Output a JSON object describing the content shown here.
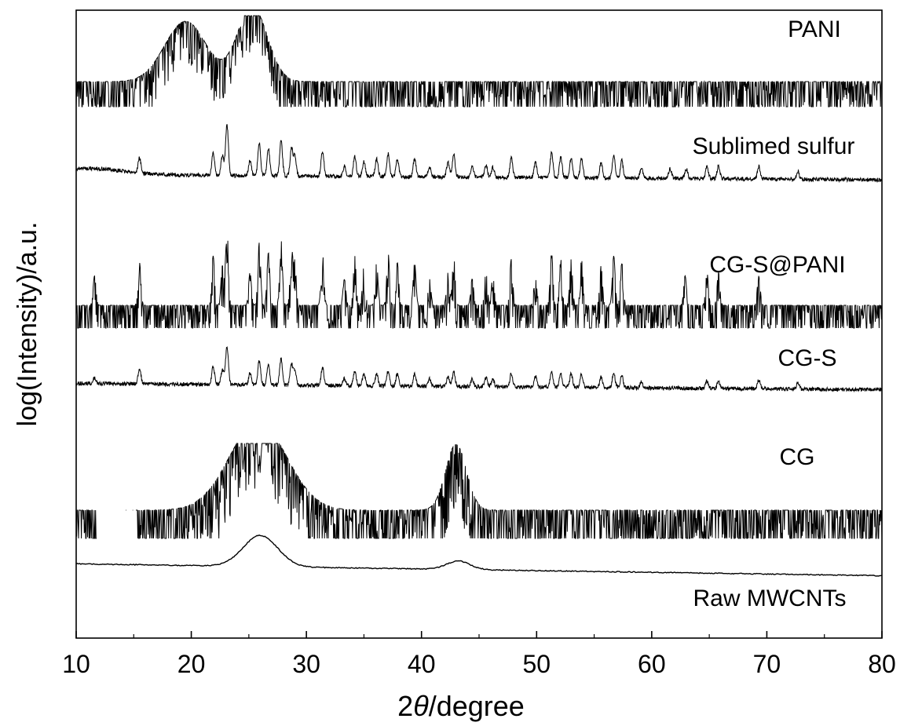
{
  "chart_data": {
    "type": "line",
    "title": "",
    "xlabel_prefix": "2",
    "xlabel_symbol": "θ",
    "xlabel_suffix": "/degree",
    "ylabel": "log(Intensity)/a.u.",
    "xlim": [
      10,
      80
    ],
    "x_ticks": [
      10,
      20,
      30,
      40,
      50,
      60,
      70,
      80
    ],
    "y_ticks": false,
    "grid": false,
    "legend": "inline labels at right of each trace",
    "series": [
      {
        "name": "PANI",
        "style": "noisy",
        "baseline": 0.5,
        "peaks": [
          [
            19.5,
            1.6,
            1.8
          ],
          [
            25.3,
            2.0,
            1.3
          ]
        ]
      },
      {
        "name": "Sublimed sulfur",
        "style": "crystalline",
        "baseline": 0.3,
        "broad": [
          [
            11.0,
            0.25,
            3.0
          ]
        ],
        "peaks": [
          [
            15.5,
            0.6,
            0.12
          ],
          [
            21.9,
            0.9,
            0.12
          ],
          [
            22.7,
            0.8,
            0.12
          ],
          [
            23.1,
            2.0,
            0.12
          ],
          [
            25.1,
            0.6,
            0.12
          ],
          [
            25.9,
            1.3,
            0.12
          ],
          [
            26.7,
            1.1,
            0.12
          ],
          [
            27.8,
            1.4,
            0.12
          ],
          [
            28.7,
            1.1,
            0.12
          ],
          [
            29.0,
            0.8,
            0.12
          ],
          [
            31.4,
            1.0,
            0.12
          ],
          [
            33.3,
            0.4,
            0.12
          ],
          [
            34.2,
            0.8,
            0.12
          ],
          [
            35.0,
            0.6,
            0.12
          ],
          [
            36.1,
            0.7,
            0.12
          ],
          [
            37.1,
            0.9,
            0.12
          ],
          [
            37.9,
            0.7,
            0.12
          ],
          [
            39.4,
            0.7,
            0.12
          ],
          [
            40.7,
            0.4,
            0.12
          ],
          [
            42.3,
            0.6,
            0.12
          ],
          [
            42.8,
            0.9,
            0.12
          ],
          [
            44.4,
            0.4,
            0.12
          ],
          [
            45.6,
            0.5,
            0.12
          ],
          [
            46.2,
            0.4,
            0.12
          ],
          [
            47.8,
            0.8,
            0.12
          ],
          [
            49.9,
            0.6,
            0.12
          ],
          [
            51.3,
            1.0,
            0.12
          ],
          [
            52.1,
            0.8,
            0.12
          ],
          [
            53.0,
            0.8,
            0.12
          ],
          [
            53.9,
            0.8,
            0.12
          ],
          [
            55.6,
            0.6,
            0.12
          ],
          [
            56.7,
            0.9,
            0.12
          ],
          [
            57.4,
            0.7,
            0.12
          ],
          [
            59.1,
            0.4,
            0.12
          ],
          [
            61.6,
            0.4,
            0.12
          ],
          [
            63.0,
            0.4,
            0.12
          ],
          [
            64.8,
            0.5,
            0.12
          ],
          [
            65.8,
            0.5,
            0.12
          ],
          [
            69.3,
            0.5,
            0.12
          ],
          [
            72.7,
            0.3,
            0.12
          ]
        ]
      },
      {
        "name": "CG-S@PANI",
        "style": "noisy-crystalline",
        "baseline": 0.5,
        "peaks": [
          [
            11.6,
            0.9,
            0.12
          ],
          [
            15.5,
            1.3,
            0.12
          ],
          [
            21.9,
            1.5,
            0.12
          ],
          [
            22.7,
            1.2,
            0.12
          ],
          [
            23.1,
            2.4,
            0.12
          ],
          [
            25.1,
            1.0,
            0.12
          ],
          [
            25.9,
            1.9,
            0.12
          ],
          [
            26.7,
            1.6,
            0.12
          ],
          [
            27.8,
            2.0,
            0.12
          ],
          [
            28.7,
            1.7,
            0.12
          ],
          [
            29.0,
            1.3,
            0.12
          ],
          [
            31.4,
            1.6,
            0.12
          ],
          [
            33.3,
            0.8,
            0.12
          ],
          [
            34.2,
            1.5,
            0.12
          ],
          [
            35.0,
            1.2,
            0.12
          ],
          [
            36.1,
            1.3,
            0.12
          ],
          [
            37.1,
            1.6,
            0.12
          ],
          [
            37.9,
            1.3,
            0.12
          ],
          [
            39.4,
            1.3,
            0.12
          ],
          [
            40.7,
            0.8,
            0.12
          ],
          [
            42.3,
            1.0,
            0.12
          ],
          [
            42.8,
            1.5,
            0.12
          ],
          [
            44.4,
            0.8,
            0.12
          ],
          [
            45.6,
            1.0,
            0.12
          ],
          [
            46.2,
            0.9,
            0.12
          ],
          [
            47.8,
            1.4,
            0.12
          ],
          [
            49.9,
            1.2,
            0.12
          ],
          [
            51.3,
            1.6,
            0.12
          ],
          [
            52.1,
            1.4,
            0.12
          ],
          [
            53.0,
            1.4,
            0.12
          ],
          [
            53.9,
            1.4,
            0.12
          ],
          [
            55.6,
            1.2,
            0.12
          ],
          [
            56.7,
            1.5,
            0.12
          ],
          [
            57.4,
            1.3,
            0.12
          ],
          [
            62.9,
            0.9,
            0.12
          ],
          [
            64.8,
            1.0,
            0.12
          ],
          [
            65.8,
            1.0,
            0.12
          ],
          [
            69.3,
            1.0,
            0.12
          ]
        ]
      },
      {
        "name": "CG-S",
        "style": "crystalline",
        "baseline": 0.3,
        "peaks": [
          [
            11.6,
            0.2,
            0.12
          ],
          [
            15.5,
            0.5,
            0.12
          ],
          [
            21.9,
            0.6,
            0.12
          ],
          [
            22.7,
            0.5,
            0.12
          ],
          [
            23.1,
            1.3,
            0.12
          ],
          [
            25.1,
            0.4,
            0.12
          ],
          [
            25.9,
            0.8,
            0.12
          ],
          [
            26.7,
            0.7,
            0.12
          ],
          [
            27.8,
            0.9,
            0.12
          ],
          [
            28.7,
            0.7,
            0.12
          ],
          [
            29.0,
            0.5,
            0.12
          ],
          [
            31.4,
            0.6,
            0.12
          ],
          [
            33.3,
            0.25,
            0.12
          ],
          [
            34.2,
            0.5,
            0.12
          ],
          [
            35.0,
            0.4,
            0.12
          ],
          [
            36.1,
            0.4,
            0.12
          ],
          [
            37.1,
            0.5,
            0.12
          ],
          [
            37.9,
            0.4,
            0.12
          ],
          [
            39.4,
            0.4,
            0.12
          ],
          [
            40.7,
            0.25,
            0.12
          ],
          [
            42.3,
            0.3,
            0.12
          ],
          [
            42.8,
            0.5,
            0.12
          ],
          [
            44.4,
            0.25,
            0.12
          ],
          [
            45.6,
            0.3,
            0.12
          ],
          [
            46.2,
            0.25,
            0.12
          ],
          [
            47.8,
            0.45,
            0.12
          ],
          [
            49.9,
            0.35,
            0.12
          ],
          [
            51.3,
            0.55,
            0.12
          ],
          [
            52.1,
            0.45,
            0.12
          ],
          [
            53.0,
            0.45,
            0.12
          ],
          [
            53.9,
            0.45,
            0.12
          ],
          [
            55.6,
            0.35,
            0.12
          ],
          [
            56.7,
            0.5,
            0.12
          ],
          [
            57.4,
            0.4,
            0.12
          ],
          [
            59.1,
            0.2,
            0.12
          ],
          [
            64.8,
            0.25,
            0.12
          ],
          [
            65.8,
            0.25,
            0.12
          ],
          [
            69.3,
            0.3,
            0.12
          ],
          [
            72.7,
            0.2,
            0.12
          ]
        ]
      },
      {
        "name": "CG",
        "style": "noisy",
        "baseline": 0.4,
        "peaks": [
          [
            25.8,
            1.6,
            2.5
          ],
          [
            43.0,
            1.2,
            0.9
          ]
        ]
      },
      {
        "name": "Raw MWCNTs",
        "style": "smooth",
        "baseline": 0.05,
        "peaks": [
          [
            26.0,
            0.55,
            1.5
          ],
          [
            43.2,
            0.15,
            1.0
          ]
        ]
      }
    ]
  }
}
